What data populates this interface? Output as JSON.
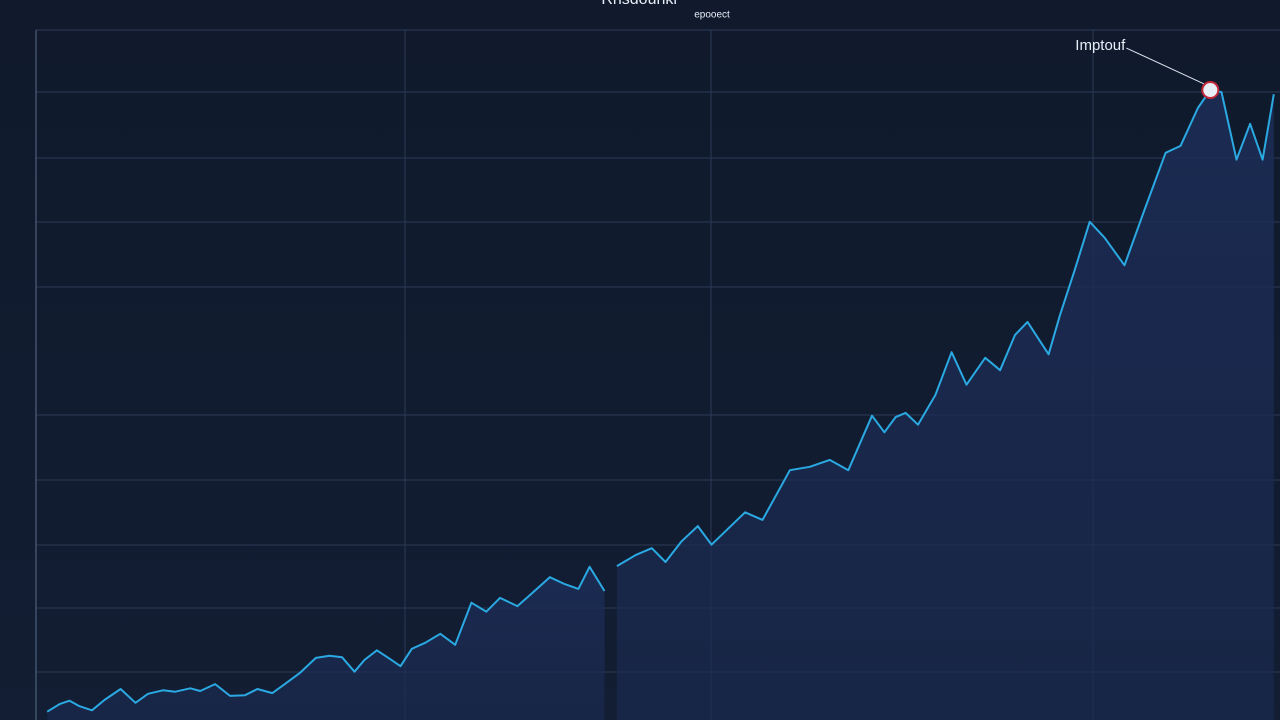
{
  "chart_data": {
    "type": "line",
    "title": "Rhsdounkr",
    "subtitle": "epooect",
    "annotation": "Imptouf",
    "xlim": [
      0,
      100
    ],
    "ylim": [
      0,
      100
    ],
    "color": "#2aa9e2",
    "x": [
      0.9,
      1.9,
      2.7,
      3.5,
      4.5,
      5.5,
      6.8,
      8.0,
      9.0,
      10.2,
      11.2,
      12.4,
      13.2,
      14.4,
      15.6,
      16.8,
      17.8,
      19.0,
      20.0,
      21.2,
      22.5,
      23.6,
      24.6,
      25.6,
      26.4,
      27.4,
      28.5,
      29.3,
      30.2,
      31.3,
      32.5,
      33.7,
      35.0,
      36.2,
      37.3,
      38.7,
      39.7,
      41.3,
      42.5,
      43.6,
      44.5,
      45.7,
      46.2,
      46.7,
      48.2,
      49.5,
      50.6,
      51.9,
      53.2,
      54.3,
      55.5,
      57.0,
      58.4,
      60.6,
      62.2,
      63.8,
      65.3,
      67.2,
      68.2,
      69.1,
      69.9,
      70.9,
      72.3,
      73.6,
      74.8,
      76.3,
      77.5,
      78.7,
      79.7,
      81.4,
      82.3,
      83.5,
      84.7,
      85.9,
      87.5,
      89.1,
      90.8,
      92.0,
      93.4,
      94.4,
      95.3,
      96.5,
      97.6,
      98.6,
      99.5
    ],
    "values": [
      1.2,
      2.3,
      2.8,
      2.0,
      1.4,
      2.9,
      4.5,
      2.5,
      3.8,
      4.3,
      4.1,
      4.6,
      4.2,
      5.2,
      3.5,
      3.6,
      4.5,
      3.9,
      5.2,
      6.8,
      9.0,
      9.3,
      9.1,
      7.0,
      8.7,
      10.1,
      8.8,
      7.8,
      10.3,
      11.2,
      12.5,
      10.9,
      17.0,
      15.7,
      17.7,
      16.5,
      18.1,
      20.7,
      19.7,
      19.0,
      22.2,
      18.7,
      null,
      22.3,
      23.9,
      24.9,
      22.9,
      25.9,
      28.1,
      25.4,
      27.5,
      30.1,
      29.0,
      36.2,
      36.7,
      37.7,
      36.2,
      44.1,
      41.7,
      43.9,
      44.5,
      42.8,
      47.1,
      53.3,
      48.6,
      52.5,
      50.7,
      55.8,
      57.7,
      53.0,
      58.6,
      65.2,
      72.2,
      69.9,
      65.9,
      73.9,
      82.2,
      83.2,
      88.7,
      91.3,
      91.0,
      81.2,
      86.4,
      81.2,
      90.7
    ]
  }
}
